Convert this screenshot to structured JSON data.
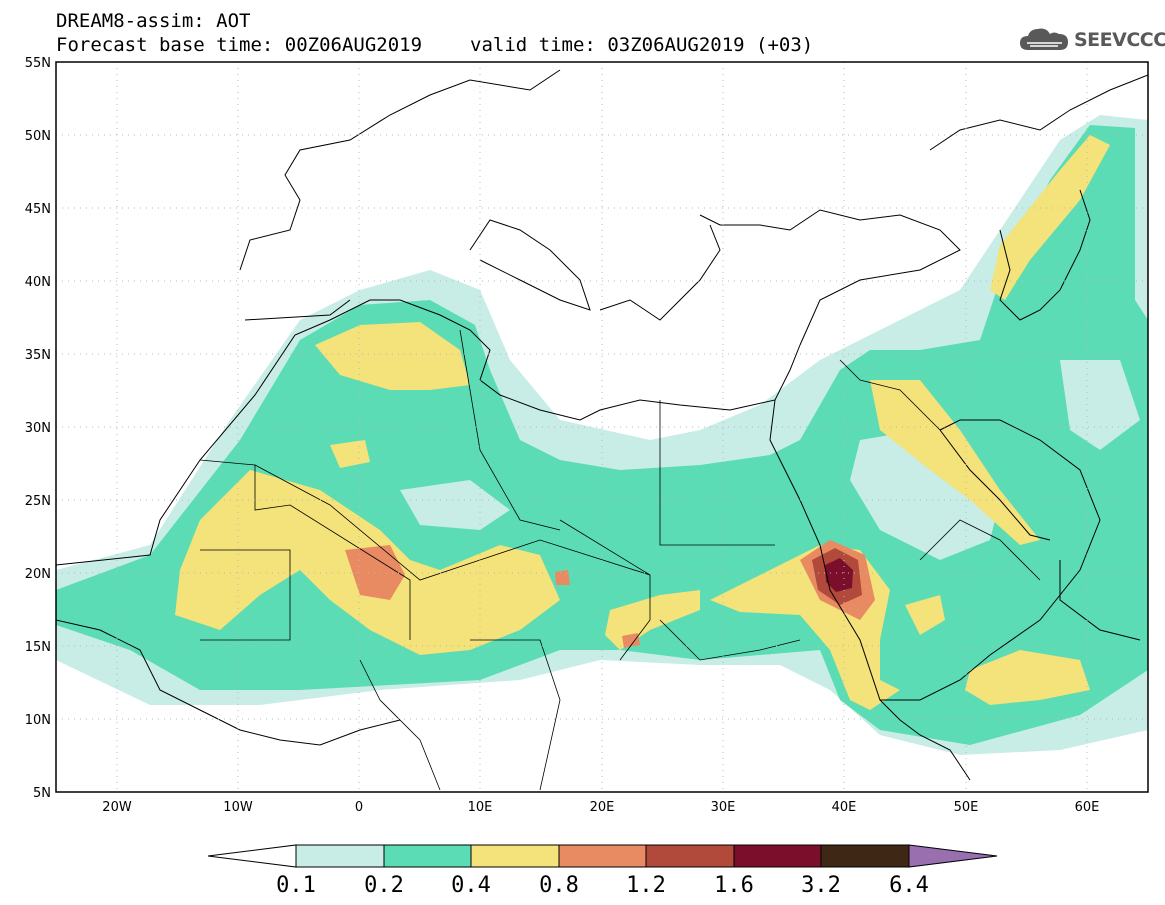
{
  "header": {
    "line1": "DREAM8-assim: AOT",
    "forecast_base": "Forecast base time: 00Z06AUG2019",
    "valid_time": "valid time: 03Z06AUG2019 (+03)"
  },
  "logo": {
    "text": "SEEVCCC",
    "icon": "cloud-icon"
  },
  "map": {
    "lon_labels": [
      "20W",
      "10W",
      "0",
      "10E",
      "20E",
      "30E",
      "40E",
      "50E",
      "60E"
    ],
    "lat_labels": [
      "55N",
      "50N",
      "45N",
      "40N",
      "35N",
      "30N",
      "25N",
      "20N",
      "15N",
      "10N",
      "5N"
    ],
    "lon_range": [
      -25,
      65
    ],
    "lat_range": [
      5,
      55
    ]
  },
  "colorbar": {
    "labels": [
      "0.1",
      "0.2",
      "0.4",
      "0.8",
      "1.2",
      "1.6",
      "3.2",
      "6.4"
    ],
    "colors": [
      "#ffffff",
      "#c7ede6",
      "#5bdcb5",
      "#f4e27a",
      "#e88a62",
      "#b14a3a",
      "#7b0f2b",
      "#3f2716",
      "#9a6fb0"
    ]
  }
}
